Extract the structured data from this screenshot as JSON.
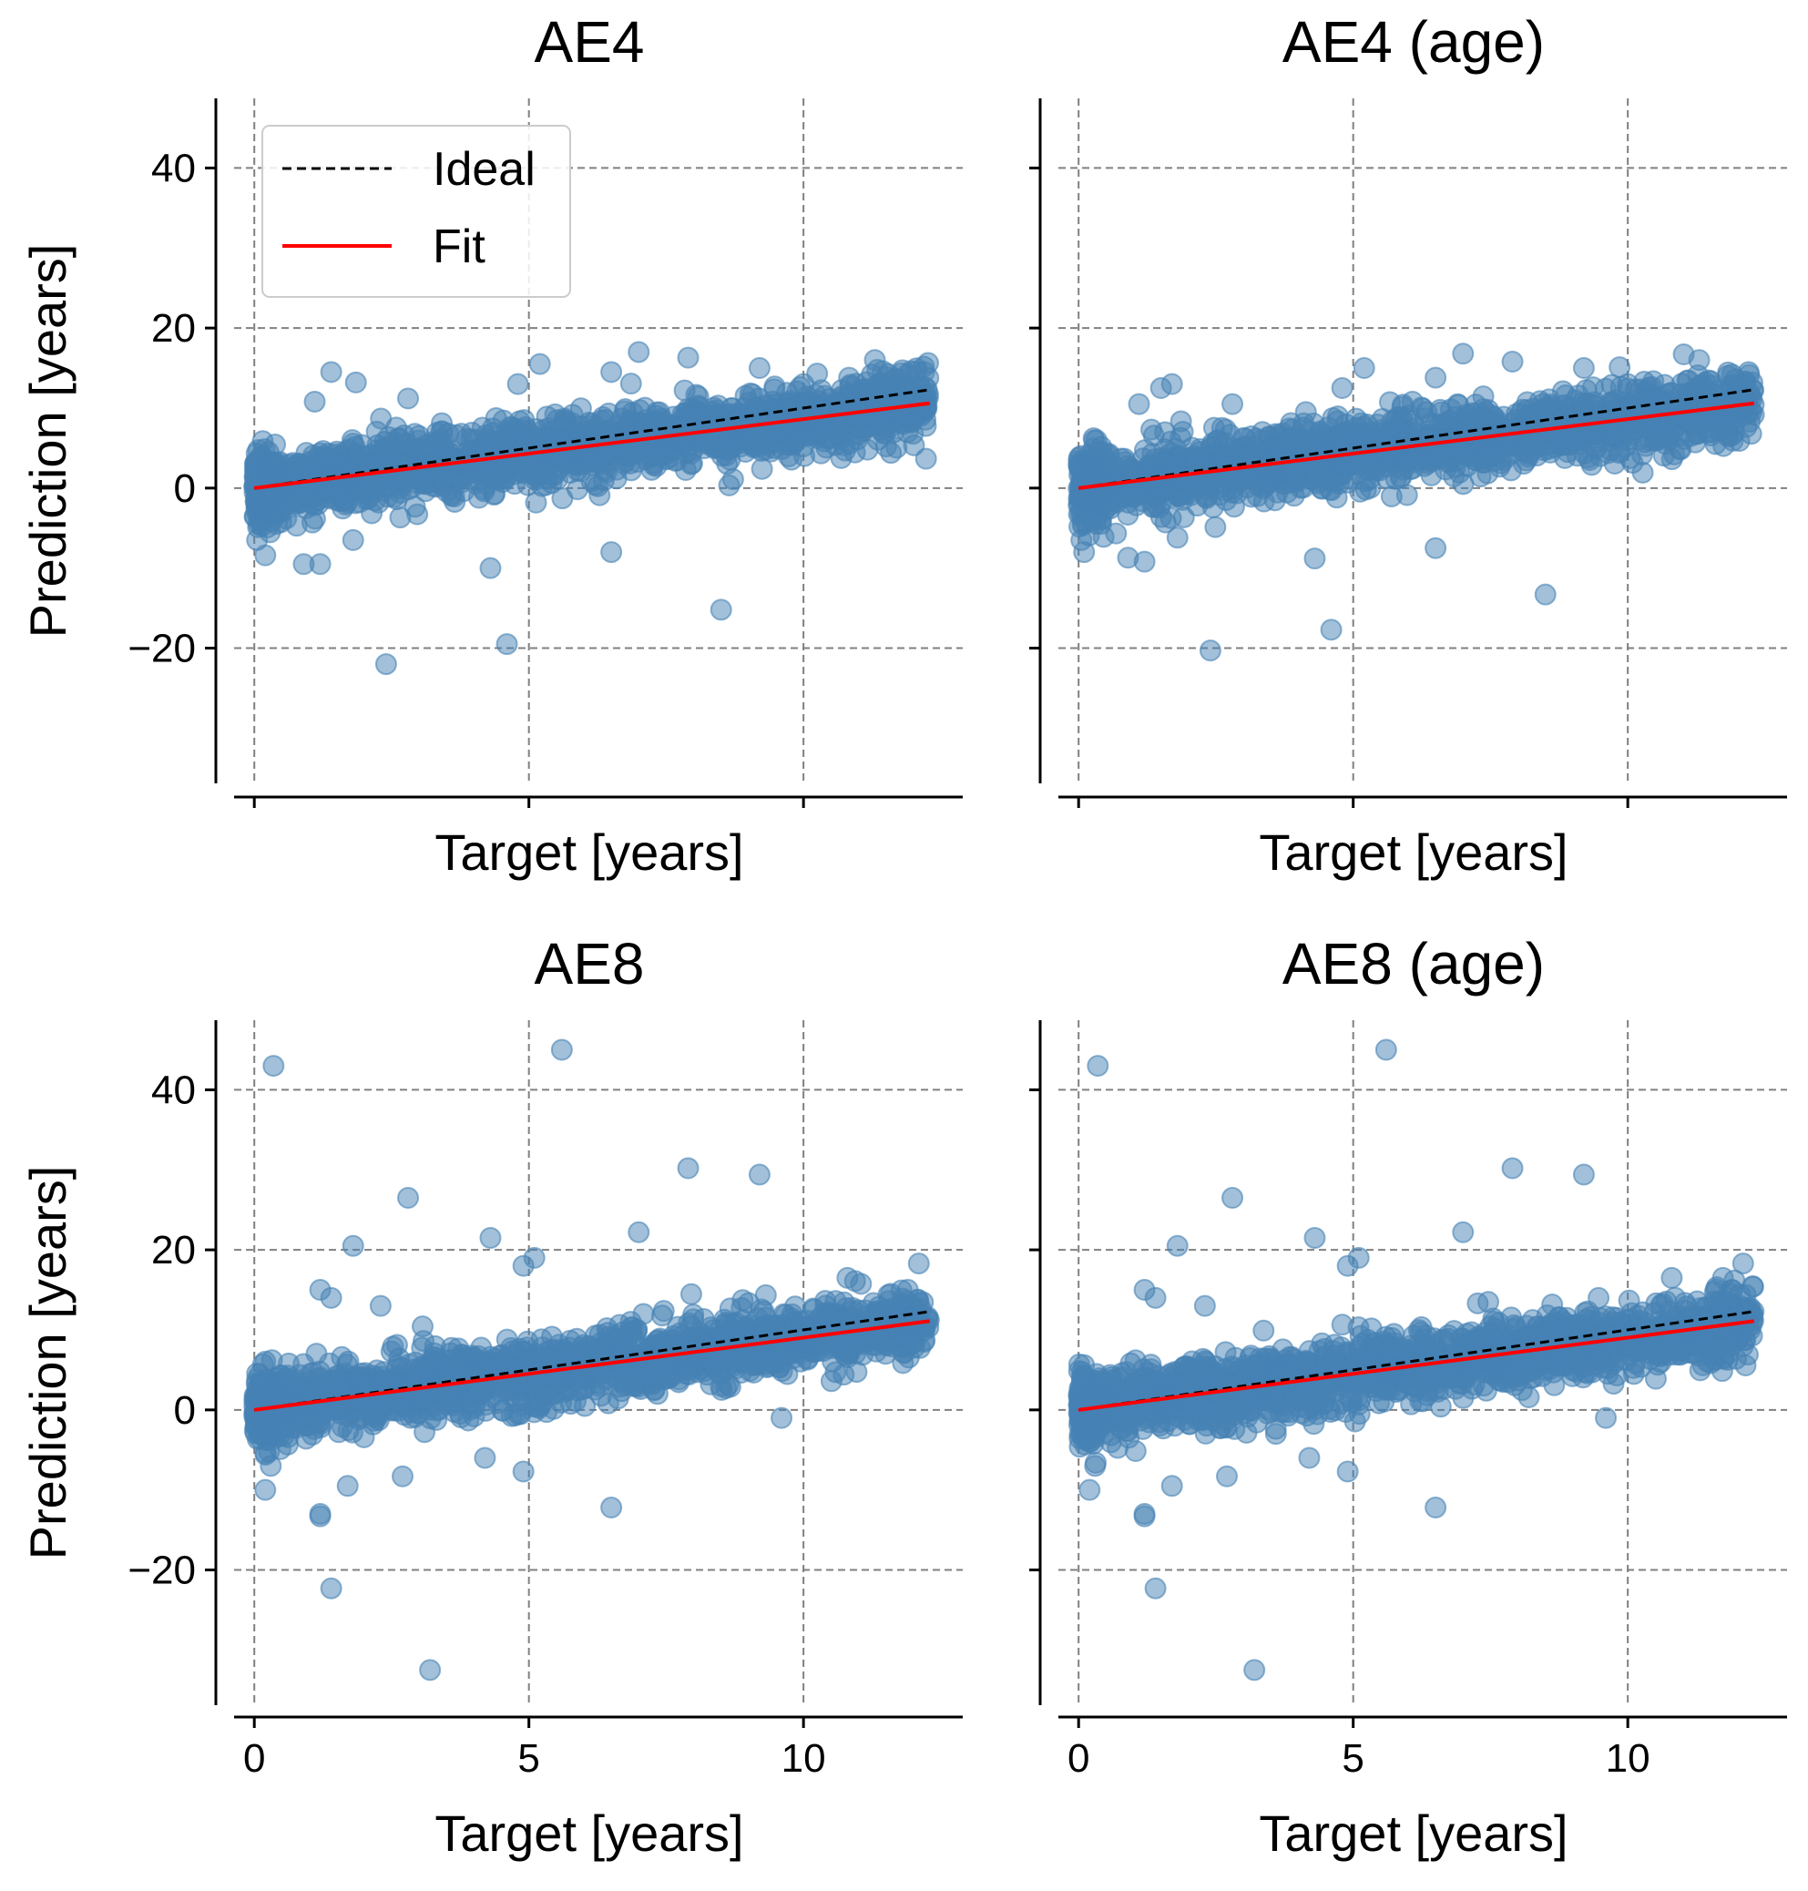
{
  "figure": {
    "legend": {
      "items": [
        {
          "label": "Ideal"
        },
        {
          "label": "Fit"
        }
      ]
    }
  },
  "chart_data": [
    {
      "type": "scatter",
      "title": "AE4",
      "xlabel": "Target [years]",
      "ylabel": "Prediction [years]",
      "xlim": [
        -0.7,
        12.9
      ],
      "ylim": [
        -36.9,
        48.7
      ],
      "xticks": [
        0,
        5,
        10
      ],
      "yticks": [
        -20,
        0,
        20,
        40
      ],
      "xtick_labels": [
        "",
        "",
        ""
      ],
      "ytick_labels": [
        "−20",
        "0",
        "20",
        "40"
      ],
      "grid": true,
      "legend": "upper-left",
      "colors": {
        "points": "#4682b4",
        "ideal": "#000000",
        "fit": "#ff0000",
        "grid": "#808080"
      },
      "lines": [
        {
          "name": "Ideal",
          "style": "dashed",
          "x": [
            0,
            12.3
          ],
          "y": [
            0,
            12.3
          ]
        },
        {
          "name": "Fit",
          "style": "solid",
          "x": [
            0,
            12.3
          ],
          "y": [
            0,
            10.6
          ]
        }
      ],
      "outliers": {
        "x": [
          0.05,
          0.2,
          0.9,
          1.1,
          1.2,
          1.4,
          1.8,
          1.85,
          2.4,
          2.8,
          4.6,
          4.3,
          4.8,
          5.2,
          6.5,
          6.5,
          7.0,
          7.9,
          8.5,
          9.2,
          10.0,
          11.3,
          12.2,
          11.9
        ],
        "y": [
          -6.5,
          -8.4,
          -9.5,
          10.8,
          -9.5,
          14.5,
          -6.5,
          13.2,
          -22.0,
          11.2,
          -19.5,
          -10.0,
          13.0,
          15.5,
          14.5,
          -8.0,
          17.0,
          16.3,
          -15.2,
          15.0,
          13.0,
          16.0,
          14.5,
          14.2
        ]
      },
      "trend": {
        "slope": 0.86,
        "intercept": 0.0,
        "x_range": [
          0,
          12.4
        ],
        "n_points": 1800
      }
    },
    {
      "type": "scatter",
      "title": "AE4 (age)",
      "xlabel": "Target [years]",
      "ylabel": "",
      "xlim": [
        -0.7,
        12.9
      ],
      "ylim": [
        -36.9,
        48.7
      ],
      "xticks": [
        0,
        5,
        10
      ],
      "yticks": [
        -20,
        0,
        20,
        40
      ],
      "xtick_labels": [
        "",
        "",
        ""
      ],
      "ytick_labels": [
        "",
        "",
        "",
        ""
      ],
      "grid": true,
      "colors": {
        "points": "#4682b4",
        "ideal": "#000000",
        "fit": "#ff0000",
        "grid": "#808080"
      },
      "lines": [
        {
          "name": "Ideal",
          "style": "dashed",
          "x": [
            0,
            12.3
          ],
          "y": [
            0,
            12.3
          ]
        },
        {
          "name": "Fit",
          "style": "solid",
          "x": [
            0,
            12.3
          ],
          "y": [
            0,
            10.6
          ]
        }
      ],
      "outliers": {
        "x": [
          0.05,
          0.1,
          0.9,
          1.1,
          1.2,
          1.5,
          1.8,
          1.7,
          2.4,
          2.8,
          4.6,
          4.3,
          4.8,
          5.2,
          6.5,
          6.5,
          7.0,
          7.9,
          8.5,
          9.2,
          10.0,
          11.3,
          12.2,
          11.9
        ],
        "y": [
          -6.5,
          -8.0,
          -8.7,
          10.5,
          -9.2,
          12.5,
          -6.2,
          13.0,
          -20.3,
          10.5,
          -17.7,
          -8.8,
          12.5,
          15.0,
          13.8,
          -7.5,
          16.8,
          15.8,
          -13.3,
          15.0,
          13.0,
          16.0,
          14.5,
          14.2
        ]
      },
      "trend": {
        "slope": 0.86,
        "intercept": 0.0,
        "x_range": [
          0,
          12.4
        ],
        "n_points": 1800
      }
    },
    {
      "type": "scatter",
      "title": "AE8",
      "xlabel": "Target [years]",
      "ylabel": "Prediction [years]",
      "xlim": [
        -0.7,
        12.9
      ],
      "ylim": [
        -36.9,
        48.7
      ],
      "xticks": [
        0,
        5,
        10
      ],
      "yticks": [
        -20,
        0,
        20,
        40
      ],
      "xtick_labels": [
        "0",
        "5",
        "10"
      ],
      "ytick_labels": [
        "−20",
        "0",
        "20",
        "40"
      ],
      "grid": true,
      "colors": {
        "points": "#4682b4",
        "ideal": "#000000",
        "fit": "#ff0000",
        "grid": "#808080"
      },
      "lines": [
        {
          "name": "Ideal",
          "style": "dashed",
          "x": [
            0,
            12.3
          ],
          "y": [
            0,
            12.3
          ]
        },
        {
          "name": "Fit",
          "style": "solid",
          "x": [
            0,
            12.3
          ],
          "y": [
            0,
            11.1
          ]
        }
      ],
      "outliers": {
        "x": [
          0.35,
          5.6,
          2.8,
          1.8,
          4.3,
          5.1,
          4.9,
          7.0,
          7.9,
          9.2,
          1.2,
          1.4,
          2.3,
          0.2,
          0.3,
          1.2,
          1.2,
          1.4,
          1.7,
          2.7,
          3.2,
          4.2,
          4.9,
          6.5,
          9.6,
          12.1,
          11.9,
          10.8
        ],
        "y": [
          43.0,
          45.0,
          26.5,
          20.5,
          21.5,
          19.0,
          18.0,
          22.2,
          30.2,
          29.4,
          15.0,
          14.0,
          13.0,
          -10.0,
          -7.0,
          -13.0,
          -13.3,
          -22.3,
          -9.5,
          -8.3,
          -32.5,
          -6.0,
          -7.7,
          -12.2,
          -1.0,
          18.3,
          15.0,
          16.5
        ]
      },
      "trend": {
        "slope": 0.9,
        "intercept": 0.0,
        "x_range": [
          0,
          12.4
        ],
        "n_points": 1800
      }
    },
    {
      "type": "scatter",
      "title": "AE8 (age)",
      "xlabel": "Target [years]",
      "ylabel": "",
      "xlim": [
        -0.7,
        12.9
      ],
      "ylim": [
        -36.9,
        48.7
      ],
      "xticks": [
        0,
        5,
        10
      ],
      "yticks": [
        -20,
        0,
        20,
        40
      ],
      "xtick_labels": [
        "0",
        "5",
        "10"
      ],
      "ytick_labels": [
        "",
        "",
        "",
        ""
      ],
      "grid": true,
      "colors": {
        "points": "#4682b4",
        "ideal": "#000000",
        "fit": "#ff0000",
        "grid": "#808080"
      },
      "lines": [
        {
          "name": "Ideal",
          "style": "dashed",
          "x": [
            0,
            12.3
          ],
          "y": [
            0,
            12.3
          ]
        },
        {
          "name": "Fit",
          "style": "solid",
          "x": [
            0,
            12.3
          ],
          "y": [
            0,
            11.1
          ]
        }
      ],
      "outliers": {
        "x": [
          0.35,
          5.6,
          2.8,
          1.8,
          4.3,
          5.1,
          4.9,
          7.0,
          7.9,
          9.2,
          1.2,
          1.4,
          2.3,
          0.2,
          0.3,
          1.2,
          1.2,
          1.4,
          1.7,
          2.7,
          3.2,
          4.2,
          4.9,
          6.5,
          9.6,
          12.1,
          11.9,
          10.8
        ],
        "y": [
          43.0,
          45.0,
          26.5,
          20.5,
          21.5,
          19.0,
          18.0,
          22.2,
          30.2,
          29.4,
          15.0,
          14.0,
          13.0,
          -10.0,
          -7.0,
          -13.0,
          -13.3,
          -22.3,
          -9.5,
          -8.3,
          -32.5,
          -6.0,
          -7.7,
          -12.2,
          -1.0,
          18.3,
          15.0,
          16.5
        ]
      },
      "trend": {
        "slope": 0.9,
        "intercept": 0.0,
        "x_range": [
          0,
          12.4
        ],
        "n_points": 1800
      }
    }
  ]
}
